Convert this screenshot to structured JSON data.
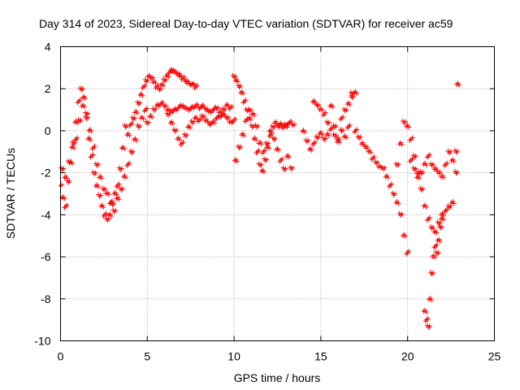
{
  "chart_data": {
    "type": "scatter",
    "title": "Day 314 of 2023, Sidereal Day-to-day VTEC variation (SDTVAR) for receiver ac59",
    "xlabel": "GPS time / hours",
    "ylabel": "SDTVAR / TECUs",
    "xlim": [
      0,
      25
    ],
    "ylim": [
      -10,
      4
    ],
    "xticks": [
      0,
      5,
      10,
      15,
      20,
      25
    ],
    "yticks": [
      -10,
      -8,
      -6,
      -4,
      -2,
      0,
      2,
      4
    ],
    "xtick_labels": [
      "0",
      "5",
      "10",
      "15",
      "20",
      "25"
    ],
    "ytick_labels": [
      "-10",
      "-8",
      "-6",
      "-4",
      "-2",
      "0",
      "2",
      "4"
    ],
    "grid": true,
    "marker": "+",
    "series": [
      {
        "name": "SDTVAR",
        "color": "#ff0000",
        "x": [
          0.0,
          0.15,
          0.3,
          0.45,
          0.6,
          0.75,
          0.9,
          1.05,
          1.2,
          1.35,
          1.5,
          1.65,
          1.8,
          1.95,
          2.1,
          2.25,
          2.4,
          2.55,
          2.7,
          2.85,
          3.0,
          3.15,
          3.3,
          3.45,
          3.6,
          3.75,
          3.9,
          4.05,
          4.2,
          4.35,
          4.5,
          4.65,
          4.8,
          4.95,
          5.1,
          5.25,
          5.4,
          5.55,
          5.7,
          5.85,
          6.0,
          6.15,
          6.3,
          6.45,
          6.6,
          6.75,
          6.9,
          7.05,
          7.2,
          7.35,
          7.5,
          7.65,
          7.8,
          0.1,
          0.3,
          0.5,
          0.7,
          0.9,
          1.1,
          1.3,
          1.5,
          1.7,
          1.9,
          2.1,
          2.3,
          2.5,
          2.7,
          2.9,
          3.1,
          3.3,
          3.5,
          3.7,
          3.9,
          4.1,
          4.3,
          4.5,
          4.7,
          4.9,
          5.0,
          5.2,
          5.4,
          5.6,
          5.8,
          6.0,
          6.2,
          6.4,
          6.6,
          6.8,
          7.0,
          7.2,
          7.4,
          7.6,
          7.8,
          8.0,
          8.2,
          8.4,
          8.6,
          8.8,
          9.0,
          9.2,
          9.4,
          9.6,
          9.8,
          6.2,
          6.4,
          6.6,
          6.8,
          7.0,
          7.2,
          7.4,
          7.6,
          7.8,
          8.0,
          8.2,
          8.4,
          8.6,
          8.8,
          9.0,
          9.2,
          9.4,
          9.6,
          9.8,
          10.0,
          10.0,
          10.15,
          10.3,
          10.45,
          10.6,
          10.75,
          10.9,
          11.05,
          11.2,
          11.35,
          11.5,
          11.65,
          11.8,
          11.95,
          12.1,
          12.25,
          12.4,
          12.55,
          12.7,
          12.85,
          13.0,
          10.1,
          10.3,
          10.5,
          10.7,
          10.9,
          11.1,
          11.3,
          11.5,
          11.7,
          11.9,
          12.1,
          12.3,
          12.5,
          12.7,
          12.9,
          13.1,
          13.3,
          13.0,
          13.2,
          13.4,
          14.0,
          14.2,
          14.4,
          14.6,
          14.8,
          15.0,
          15.2,
          15.4,
          15.6,
          15.8,
          16.0,
          16.2,
          16.4,
          16.6,
          16.8,
          14.6,
          14.8,
          15.0,
          15.2,
          15.4,
          15.6,
          15.8,
          16.0,
          16.2,
          16.4,
          16.6,
          16.8,
          17.0,
          17.0,
          17.2,
          17.4,
          17.6,
          17.8,
          18.0,
          18.2,
          18.4,
          18.6,
          18.8,
          19.0,
          19.2,
          19.4,
          19.6,
          19.8,
          20.0,
          19.4,
          19.6,
          19.8,
          20.0,
          20.2,
          20.4,
          20.6,
          20.8,
          21.0,
          21.2,
          21.4,
          21.6,
          21.8,
          22.0,
          20.2,
          20.4,
          20.6,
          20.8,
          21.0,
          21.2,
          21.4,
          21.6,
          21.8,
          22.0,
          22.2,
          22.4,
          22.6,
          22.8,
          21.0,
          21.1,
          21.2,
          21.3,
          21.4,
          21.5,
          21.6,
          21.7,
          21.8,
          21.9,
          22.0,
          22.2,
          22.4,
          22.6,
          22.8,
          22.9
        ],
        "y": [
          -2.6,
          -3.2,
          -3.6,
          -2.4,
          -1.5,
          -0.6,
          0.4,
          1.4,
          2.0,
          1.6,
          0.6,
          -0.4,
          -1.2,
          -2.0,
          -2.6,
          -3.1,
          -3.6,
          -4.0,
          -4.2,
          -4.0,
          -3.5,
          -3.0,
          -2.6,
          -1.8,
          -0.8,
          0.2,
          -0.2,
          0.3,
          0.6,
          0.9,
          1.3,
          1.7,
          2.1,
          2.4,
          2.6,
          2.5,
          2.3,
          2.1,
          2.0,
          2.2,
          2.4,
          2.6,
          2.8,
          2.9,
          2.8,
          2.7,
          2.6,
          2.5,
          2.4,
          2.3,
          2.2,
          2.2,
          2.1,
          -1.8,
          -2.2,
          -1.5,
          -0.8,
          -0.4,
          0.5,
          1.2,
          0.8,
          0.0,
          -0.8,
          -1.6,
          -2.2,
          -2.8,
          -3.0,
          -3.4,
          -3.8,
          -3.2,
          -2.8,
          -2.2,
          -1.6,
          -1.0,
          -0.4,
          0.2,
          0.6,
          1.0,
          0.4,
          0.7,
          1.0,
          1.2,
          1.3,
          1.2,
          1.0,
          0.9,
          1.0,
          1.1,
          1.2,
          1.1,
          1.0,
          1.1,
          1.2,
          1.1,
          1.2,
          1.0,
          0.9,
          1.0,
          1.1,
          0.9,
          1.0,
          1.2,
          1.1,
          0.8,
          0.4,
          0.0,
          -0.4,
          -0.6,
          -0.2,
          0.2,
          0.4,
          0.6,
          0.5,
          0.7,
          0.5,
          0.3,
          0.4,
          0.6,
          0.7,
          0.8,
          0.6,
          0.4,
          0.5,
          2.6,
          2.4,
          2.1,
          1.8,
          1.4,
          1.0,
          0.6,
          0.2,
          -0.4,
          -1.0,
          -1.6,
          -1.9,
          -1.4,
          -0.8,
          -0.2,
          0.2,
          0.4,
          0.2,
          0.3,
          0.2,
          0.3,
          -1.4,
          -0.8,
          -0.2,
          0.5,
          1.0,
          0.8,
          0.2,
          -0.6,
          -1.0,
          -0.6,
          0.0,
          -0.4,
          -0.9,
          -1.4,
          -1.8,
          -1.2,
          -1.8,
          0.2,
          0.4,
          0.3,
          0.0,
          -0.5,
          -0.9,
          -0.6,
          -0.3,
          -0.1,
          -0.4,
          -0.2,
          0.1,
          -0.2,
          -0.5,
          0.0,
          -0.3,
          0.2,
          1.8,
          1.4,
          1.2,
          1.0,
          0.8,
          0.4,
          1.2,
          0.2,
          -0.4,
          0.6,
          1.0,
          1.3,
          1.6,
          1.8,
          0.0,
          -0.3,
          -0.6,
          -0.8,
          -1.0,
          -1.3,
          -1.5,
          -1.7,
          -1.8,
          -2.2,
          -2.6,
          -3.0,
          -3.4,
          -4.0,
          -5.0,
          -5.8,
          -1.6,
          -0.6,
          0.4,
          0.2,
          -0.4,
          -1.2,
          -2.0,
          -2.8,
          -3.6,
          -4.2,
          -4.6,
          -4.8,
          -4.4,
          -4.0,
          -1.4,
          -1.8,
          -2.2,
          -2.0,
          -1.6,
          -1.2,
          -1.6,
          -1.8,
          -2.0,
          -2.2,
          -1.6,
          -1.0,
          -1.4,
          -2.0,
          -8.6,
          -9.0,
          -9.3,
          -8.0,
          -6.8,
          -6.0,
          -5.5,
          -5.8,
          -5.2,
          -4.6,
          -4.2,
          -3.8,
          -3.6,
          -3.4,
          -1.0,
          2.2
        ]
      }
    ]
  }
}
